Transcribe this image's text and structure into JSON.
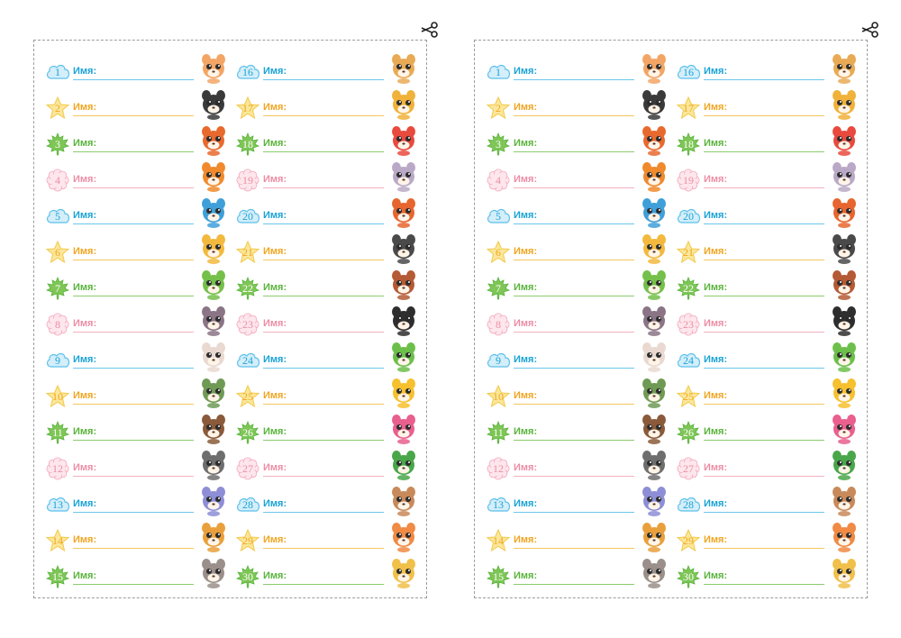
{
  "sheets": [
    {
      "rows": [
        {
          "num": "1",
          "label": "Имя:",
          "theme": "blue",
          "animal": "cat-icon",
          "color": "#f3a565"
        },
        {
          "num": "2",
          "label": "Имя:",
          "theme": "yellow",
          "animal": "panda-icon",
          "color": "#3a3a3a"
        },
        {
          "num": "3",
          "label": "Имя:",
          "theme": "green",
          "animal": "fox-icon",
          "color": "#e8692e"
        },
        {
          "num": "4",
          "label": "Имя:",
          "theme": "pink",
          "animal": "tiger-icon",
          "color": "#f08a2c"
        },
        {
          "num": "5",
          "label": "Имя:",
          "theme": "blue",
          "animal": "dolphin-icon",
          "color": "#3f9fd9"
        },
        {
          "num": "6",
          "label": "Имя:",
          "theme": "yellow",
          "animal": "lion-cub-icon",
          "color": "#f2b93e"
        },
        {
          "num": "7",
          "label": "Имя:",
          "theme": "green",
          "animal": "dinosaur-icon",
          "color": "#74c04a"
        },
        {
          "num": "8",
          "label": "Имя:",
          "theme": "pink",
          "animal": "raccoon-icon",
          "color": "#8a7486"
        },
        {
          "num": "9",
          "label": "Имя:",
          "theme": "blue",
          "animal": "bunny-icon",
          "color": "#e9d9d0"
        },
        {
          "num": "10",
          "label": "Имя:",
          "theme": "yellow",
          "animal": "owl-icon",
          "color": "#6f9a55"
        },
        {
          "num": "11",
          "label": "Имя:",
          "theme": "green",
          "animal": "hedgehog-icon",
          "color": "#8a5a3a"
        },
        {
          "num": "12",
          "label": "Имя:",
          "theme": "pink",
          "animal": "kitten-icon",
          "color": "#6e6e6e"
        },
        {
          "num": "13",
          "label": "Имя:",
          "theme": "blue",
          "animal": "elephant-icon",
          "color": "#8d8ed6"
        },
        {
          "num": "14",
          "label": "Имя:",
          "theme": "yellow",
          "animal": "leopard-icon",
          "color": "#e9a03c"
        },
        {
          "num": "15",
          "label": "Имя:",
          "theme": "green",
          "animal": "koala-icon",
          "color": "#9a8f8a"
        },
        {
          "num": "16",
          "label": "Имя:",
          "theme": "blue",
          "animal": "puppy-icon",
          "color": "#e9aa55"
        },
        {
          "num": "17",
          "label": "Имя:",
          "theme": "yellow",
          "animal": "giraffe-icon",
          "color": "#f0b23a"
        },
        {
          "num": "18",
          "label": "Имя:",
          "theme": "green",
          "animal": "parrot-icon",
          "color": "#e94a3e"
        },
        {
          "num": "19",
          "label": "Имя:",
          "theme": "pink",
          "animal": "mouse-icon",
          "color": "#b9a9c6"
        },
        {
          "num": "20",
          "label": "Имя:",
          "theme": "blue",
          "animal": "squirrel-icon",
          "color": "#e7652e"
        },
        {
          "num": "21",
          "label": "Имя:",
          "theme": "yellow",
          "animal": "zebra-icon",
          "color": "#4a4a4a"
        },
        {
          "num": "22",
          "label": "Имя:",
          "theme": "green",
          "animal": "monkey-icon",
          "color": "#b45a34"
        },
        {
          "num": "23",
          "label": "Имя:",
          "theme": "pink",
          "animal": "toucan-icon",
          "color": "#2e2e2e"
        },
        {
          "num": "24",
          "label": "Имя:",
          "theme": "blue",
          "animal": "frog-icon",
          "color": "#6cc04a"
        },
        {
          "num": "25",
          "label": "Имя:",
          "theme": "yellow",
          "animal": "duckling-icon",
          "color": "#f6c02e"
        },
        {
          "num": "26",
          "label": "Имя:",
          "theme": "green",
          "animal": "fish-icon",
          "color": "#e95f8d"
        },
        {
          "num": "27",
          "label": "Имя:",
          "theme": "pink",
          "animal": "turtle-icon",
          "color": "#4aa64a"
        },
        {
          "num": "28",
          "label": "Имя:",
          "theme": "blue",
          "animal": "sloth-icon",
          "color": "#c88a5a"
        },
        {
          "num": "29",
          "label": "Имя:",
          "theme": "yellow",
          "animal": "pony-icon",
          "color": "#f08a44"
        },
        {
          "num": "30",
          "label": "Имя:",
          "theme": "green",
          "animal": "lion-icon",
          "color": "#f1c04a"
        }
      ]
    },
    {
      "rows": [
        {
          "num": "1",
          "label": "Имя:",
          "theme": "blue",
          "animal": "cat-icon",
          "color": "#f3a565"
        },
        {
          "num": "2",
          "label": "Имя:",
          "theme": "yellow",
          "animal": "panda-icon",
          "color": "#3a3a3a"
        },
        {
          "num": "3",
          "label": "Имя:",
          "theme": "green",
          "animal": "fox-icon",
          "color": "#e8692e"
        },
        {
          "num": "4",
          "label": "Имя:",
          "theme": "pink",
          "animal": "tiger-icon",
          "color": "#f08a2c"
        },
        {
          "num": "5",
          "label": "Имя:",
          "theme": "blue",
          "animal": "dolphin-icon",
          "color": "#3f9fd9"
        },
        {
          "num": "6",
          "label": "Имя:",
          "theme": "yellow",
          "animal": "lion-cub-icon",
          "color": "#f2b93e"
        },
        {
          "num": "7",
          "label": "Имя:",
          "theme": "green",
          "animal": "dinosaur-icon",
          "color": "#74c04a"
        },
        {
          "num": "8",
          "label": "Имя:",
          "theme": "pink",
          "animal": "raccoon-icon",
          "color": "#8a7486"
        },
        {
          "num": "9",
          "label": "Имя:",
          "theme": "blue",
          "animal": "bunny-icon",
          "color": "#e9d9d0"
        },
        {
          "num": "10",
          "label": "Имя:",
          "theme": "yellow",
          "animal": "owl-icon",
          "color": "#6f9a55"
        },
        {
          "num": "11",
          "label": "Имя:",
          "theme": "green",
          "animal": "hedgehog-icon",
          "color": "#8a5a3a"
        },
        {
          "num": "12",
          "label": "Имя:",
          "theme": "pink",
          "animal": "kitten-icon",
          "color": "#6e6e6e"
        },
        {
          "num": "13",
          "label": "Имя:",
          "theme": "blue",
          "animal": "elephant-icon",
          "color": "#8d8ed6"
        },
        {
          "num": "14",
          "label": "Имя:",
          "theme": "yellow",
          "animal": "leopard-icon",
          "color": "#e9a03c"
        },
        {
          "num": "15",
          "label": "Имя:",
          "theme": "green",
          "animal": "koala-icon",
          "color": "#9a8f8a"
        },
        {
          "num": "16",
          "label": "Имя:",
          "theme": "blue",
          "animal": "puppy-icon",
          "color": "#e9aa55"
        },
        {
          "num": "17",
          "label": "Имя:",
          "theme": "yellow",
          "animal": "giraffe-icon",
          "color": "#f0b23a"
        },
        {
          "num": "18",
          "label": "Имя:",
          "theme": "green",
          "animal": "parrot-icon",
          "color": "#e94a3e"
        },
        {
          "num": "19",
          "label": "Имя:",
          "theme": "pink",
          "animal": "mouse-icon",
          "color": "#b9a9c6"
        },
        {
          "num": "20",
          "label": "Имя:",
          "theme": "blue",
          "animal": "squirrel-icon",
          "color": "#e7652e"
        },
        {
          "num": "21",
          "label": "Имя:",
          "theme": "yellow",
          "animal": "zebra-icon",
          "color": "#4a4a4a"
        },
        {
          "num": "22",
          "label": "Имя:",
          "theme": "green",
          "animal": "monkey-icon",
          "color": "#b45a34"
        },
        {
          "num": "23",
          "label": "Имя:",
          "theme": "pink",
          "animal": "toucan-icon",
          "color": "#2e2e2e"
        },
        {
          "num": "24",
          "label": "Имя:",
          "theme": "blue",
          "animal": "frog-icon",
          "color": "#6cc04a"
        },
        {
          "num": "25",
          "label": "Имя:",
          "theme": "yellow",
          "animal": "duckling-icon",
          "color": "#f6c02e"
        },
        {
          "num": "26",
          "label": "Имя:",
          "theme": "green",
          "animal": "fish-icon",
          "color": "#e95f8d"
        },
        {
          "num": "27",
          "label": "Имя:",
          "theme": "pink",
          "animal": "turtle-icon",
          "color": "#4aa64a"
        },
        {
          "num": "28",
          "label": "Имя:",
          "theme": "blue",
          "animal": "sloth-icon",
          "color": "#c88a5a"
        },
        {
          "num": "29",
          "label": "Имя:",
          "theme": "yellow",
          "animal": "pony-icon",
          "color": "#f08a44"
        },
        {
          "num": "30",
          "label": "Имя:",
          "theme": "green",
          "animal": "lion-icon",
          "color": "#f1c04a"
        }
      ]
    }
  ],
  "theme_colors": {
    "blue": {
      "fill": "#d4eefa",
      "stroke": "#5cc0ea",
      "text": "#1aa3d6"
    },
    "yellow": {
      "fill": "#fbe79a",
      "stroke": "#f3c94a",
      "text": "#f0a622"
    },
    "green": {
      "fill": "#7fc657",
      "stroke": "#5ab43c",
      "text": "#ffffff"
    },
    "pink": {
      "fill": "#fde6ec",
      "stroke": "#f2a6ba",
      "text": "#ec8ea5"
    }
  }
}
